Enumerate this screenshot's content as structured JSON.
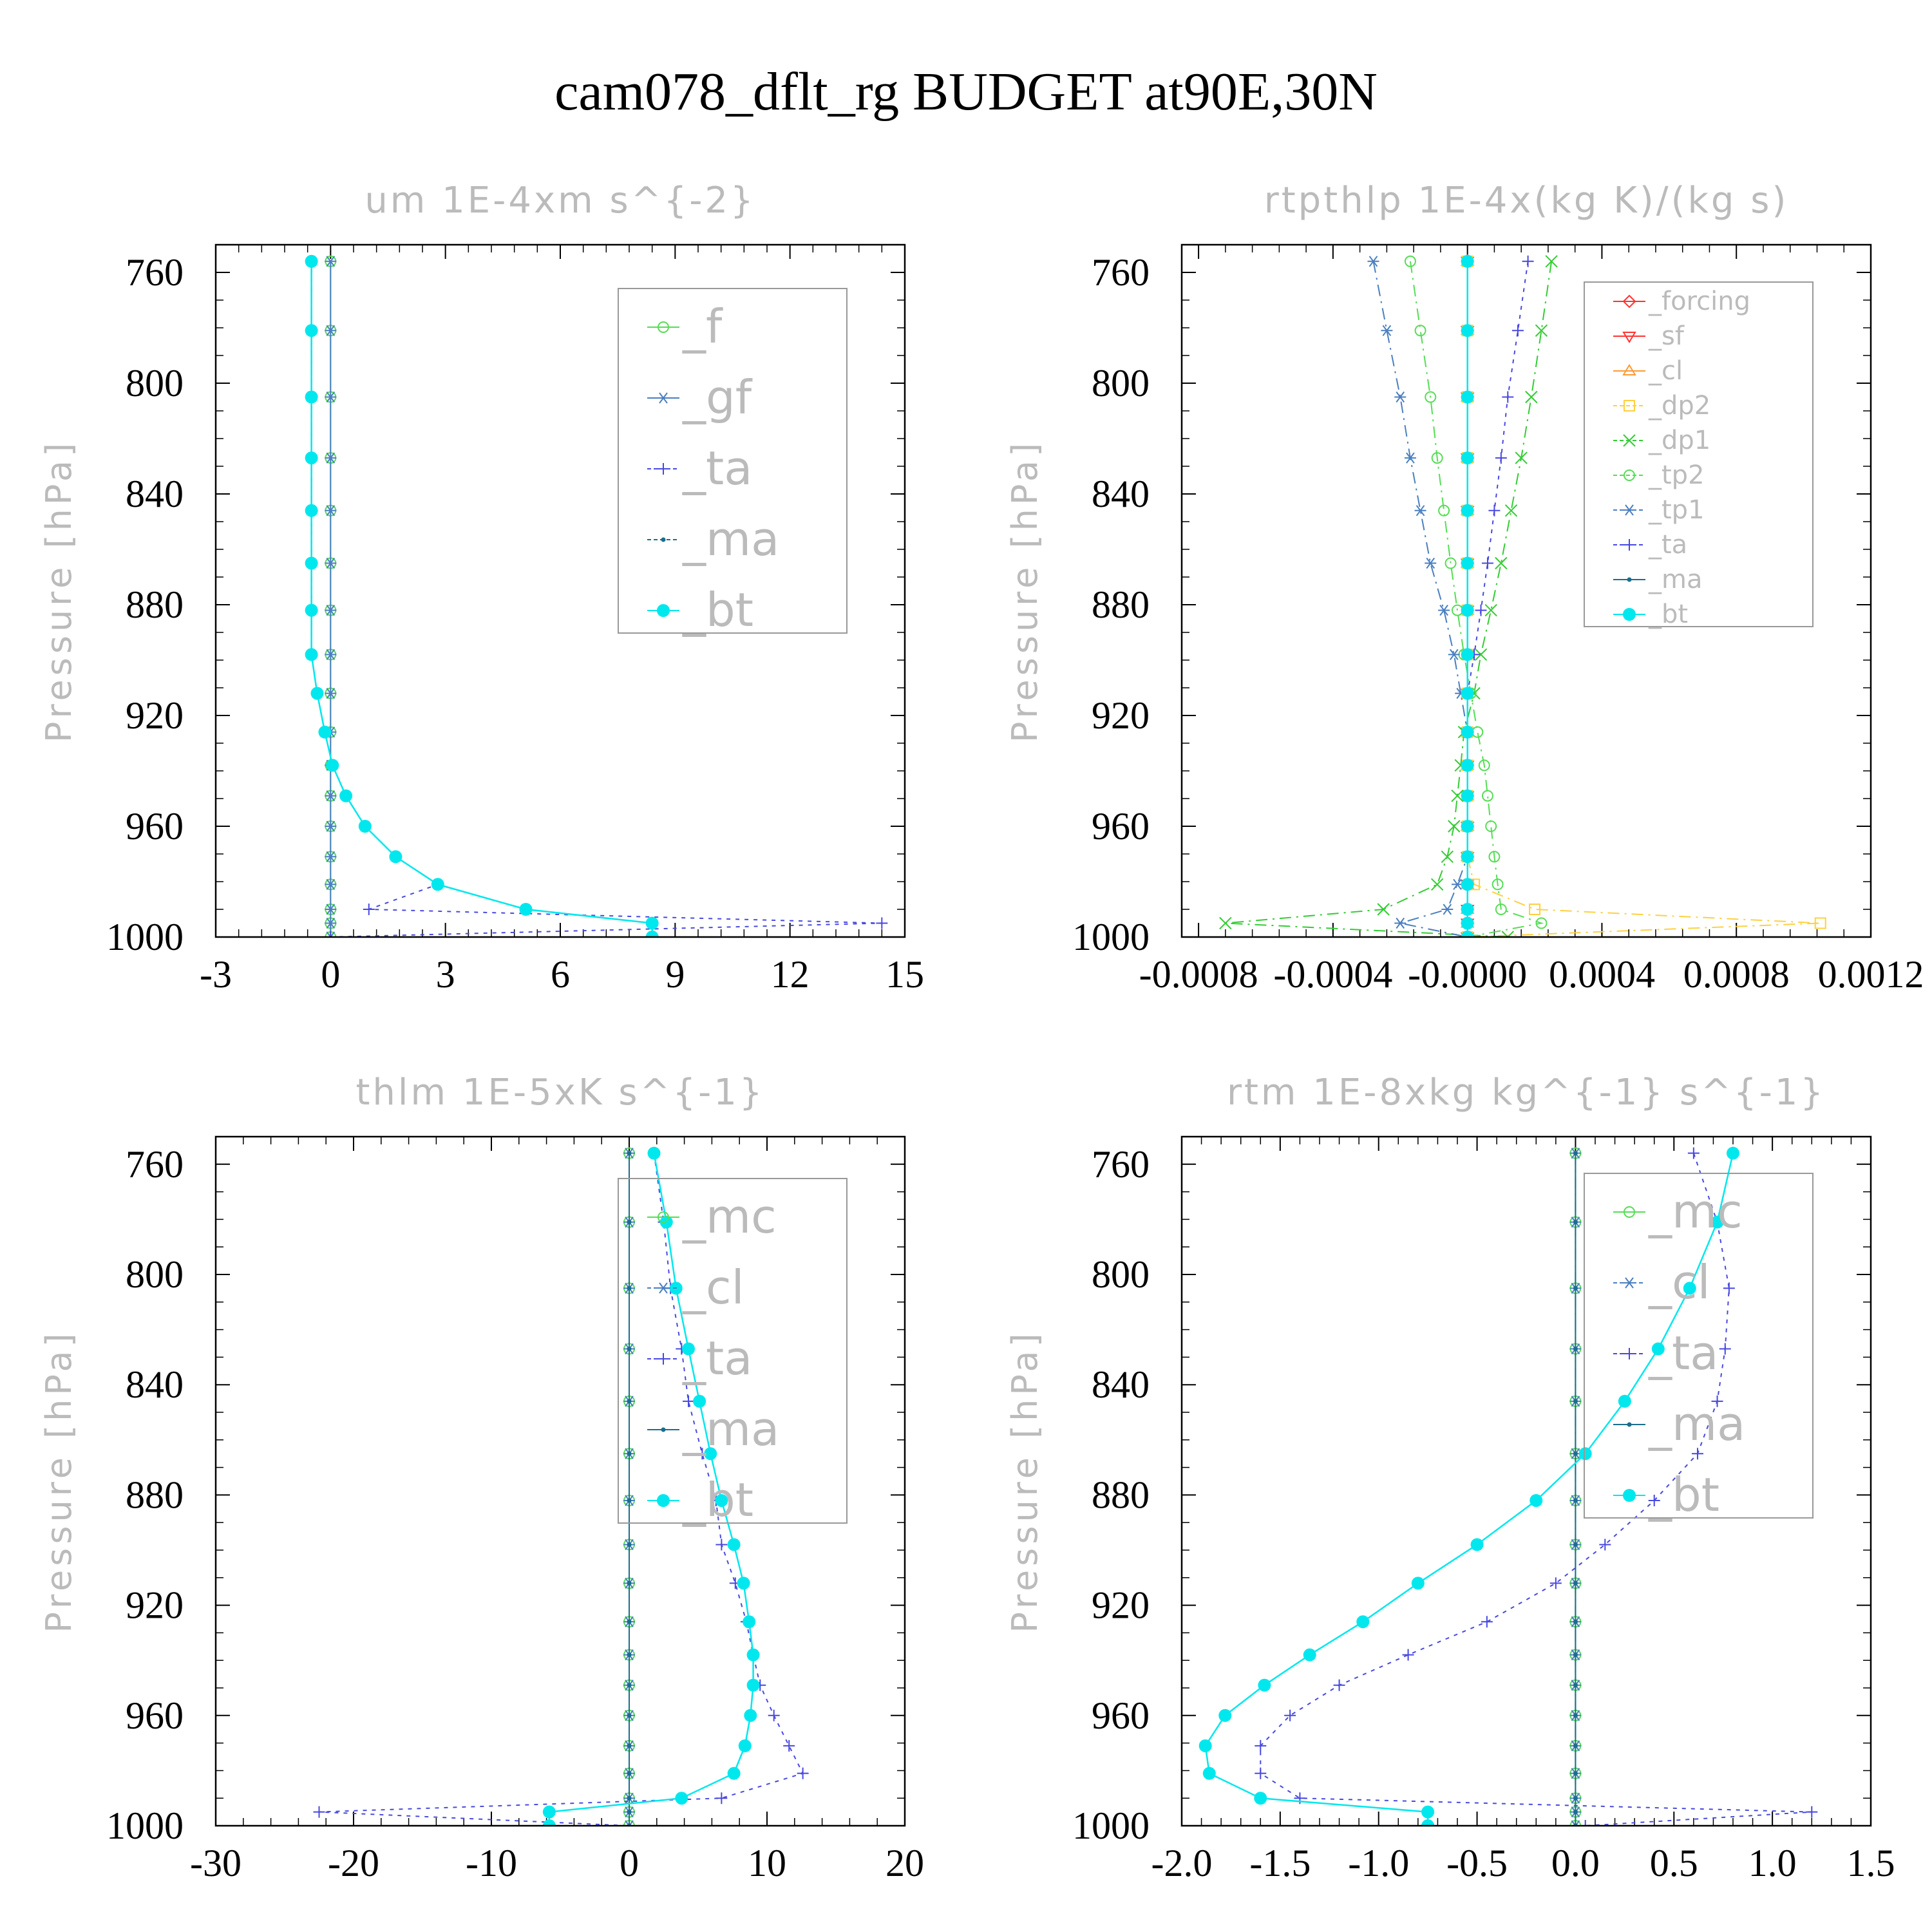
{
  "figure": {
    "title": "cam078_dflt_rg  BUDGET at90E,30N"
  },
  "colors": {
    "green": "#55dd55",
    "steel": "#4a7fc0",
    "blue": "#4848e0",
    "teal": "#1a6e8e",
    "cyan": "#00e8ee",
    "red": "#ff3333",
    "orange": "#ff9a33",
    "yellow": "#ffd040",
    "lgreen": "#33cc33",
    "frame": "#000000",
    "legendbox": "#999999"
  },
  "chart_data": [
    {
      "id": "um",
      "type": "line",
      "title": "um   1E-4xm s^{-2}",
      "ylabel": "Pressure [hPa]",
      "xlim": [
        -3,
        15
      ],
      "ylim": [
        750,
        1000
      ],
      "y_inverted": true,
      "xticks": [
        -3,
        0,
        3,
        6,
        9,
        12,
        15
      ],
      "xtick_labels": [
        "-3",
        "0",
        "3",
        "6",
        "9",
        "12",
        "15"
      ],
      "yticks": [
        760,
        800,
        840,
        880,
        920,
        960,
        1000
      ],
      "ytick_labels": [
        "760",
        "800",
        "840",
        "880",
        "920",
        "960",
        "1000"
      ],
      "legend_position": "top-right",
      "legend_font": 72,
      "pressure": [
        756,
        781,
        805,
        827,
        846,
        865,
        882,
        898,
        912,
        926,
        938,
        949,
        960,
        971,
        981,
        990,
        995,
        1000
      ],
      "series": [
        {
          "name": "_f",
          "color": "green",
          "marker": "circle-open",
          "dash": "",
          "values": [
            0,
            0,
            0,
            0,
            0,
            0,
            0,
            0,
            0,
            0,
            0,
            0,
            0,
            0,
            0,
            0,
            0,
            0
          ]
        },
        {
          "name": "_gf",
          "color": "steel",
          "marker": "asterisk",
          "dash": "",
          "values": [
            0,
            0,
            0,
            0,
            0,
            0,
            0,
            0,
            0,
            0,
            0,
            0,
            0,
            0,
            0,
            0,
            0,
            0
          ]
        },
        {
          "name": "_ta",
          "color": "blue",
          "marker": "plus",
          "dash": "6,8",
          "values": [
            -0.5,
            -0.5,
            -0.5,
            -0.5,
            -0.5,
            -0.5,
            -0.5,
            -0.5,
            -0.35,
            -0.15,
            0.05,
            0.4,
            0.9,
            1.7,
            2.8,
            1.0,
            14.4,
            0.0
          ]
        },
        {
          "name": "_ma",
          "color": "teal",
          "marker": "dot",
          "dash": "18,8,3,8",
          "values": [
            -0.5,
            -0.5,
            -0.5,
            -0.5,
            -0.5,
            -0.5,
            -0.5,
            -0.5,
            -0.35,
            -0.15,
            0.05,
            0.4,
            0.9,
            1.7,
            2.8,
            5.1,
            8.4,
            8.4
          ]
        },
        {
          "name": "_bt",
          "color": "cyan",
          "marker": "circle-filled",
          "dash": "",
          "values": [
            -0.5,
            -0.5,
            -0.5,
            -0.5,
            -0.5,
            -0.5,
            -0.5,
            -0.5,
            -0.35,
            -0.15,
            0.05,
            0.4,
            0.9,
            1.7,
            2.8,
            5.1,
            8.4,
            8.4
          ]
        }
      ]
    },
    {
      "id": "rtpthlp",
      "type": "line",
      "title": "rtpthlp   1E-4x(kg K)/(kg s)",
      "ylabel": "Pressure [hPa]",
      "xlim": [
        -0.00085,
        0.0012
      ],
      "ylim": [
        750,
        1000
      ],
      "y_inverted": true,
      "xticks": [
        -0.0008,
        -0.0004,
        0.0,
        0.0004,
        0.0008,
        0.0012
      ],
      "xtick_labels": [
        "-0.0008",
        "-0.0004",
        "-0.0000",
        "0.0004",
        "0.0008",
        "0.0012"
      ],
      "yticks": [
        760,
        800,
        840,
        880,
        920,
        960,
        1000
      ],
      "ytick_labels": [
        "760",
        "800",
        "840",
        "880",
        "920",
        "960",
        "1000"
      ],
      "legend_position": "top-right",
      "legend_font": 40,
      "pressure": [
        756,
        781,
        805,
        827,
        846,
        865,
        882,
        898,
        912,
        926,
        938,
        949,
        960,
        971,
        981,
        990,
        995,
        1000
      ],
      "series": [
        {
          "name": "_forcing",
          "color": "red",
          "marker": "diamond-open",
          "dash": "",
          "values": [
            0,
            0,
            0,
            0,
            0,
            0,
            0,
            0,
            0,
            0,
            0,
            0,
            0,
            0,
            0,
            0,
            0,
            0
          ]
        },
        {
          "name": "_sf",
          "color": "red",
          "marker": "tri-down",
          "dash": "",
          "values": [
            0,
            0,
            0,
            0,
            0,
            0,
            0,
            0,
            0,
            0,
            0,
            0,
            0,
            0,
            0,
            0,
            0,
            0
          ]
        },
        {
          "name": "_cl",
          "color": "orange",
          "marker": "tri-up",
          "dash": "",
          "values": [
            0,
            0,
            0,
            0,
            0,
            0,
            0,
            0,
            0,
            0,
            0,
            0,
            0,
            0,
            0,
            0,
            0,
            0
          ]
        },
        {
          "name": "_dp2",
          "color": "yellow",
          "marker": "square-open",
          "dash": "18,8,3,8",
          "values": [
            0,
            0,
            0,
            0,
            0,
            0,
            0,
            0,
            0,
            0,
            0,
            0,
            0,
            0,
            2e-05,
            0.0002,
            0.00105,
            0
          ]
        },
        {
          "name": "_dp1",
          "color": "lgreen",
          "marker": "cross",
          "dash": "18,8,3,8",
          "values": [
            0.00025,
            0.00022,
            0.00019,
            0.00016,
            0.00013,
            0.0001,
            7e-05,
            4e-05,
            2e-05,
            -1e-05,
            -2e-05,
            -3e-05,
            -4e-05,
            -6e-05,
            -9e-05,
            -0.00025,
            -0.00072,
            0.00012
          ]
        },
        {
          "name": "_tp2",
          "color": "green",
          "marker": "circle-open",
          "dash": "18,8,3,8",
          "values": [
            -0.00017,
            -0.00014,
            -0.00011,
            -9e-05,
            -7e-05,
            -5e-05,
            -3e-05,
            -1e-05,
            1e-05,
            3e-05,
            5e-05,
            6e-05,
            7e-05,
            8e-05,
            9e-05,
            0.0001,
            0.00022,
            0
          ]
        },
        {
          "name": "_tp1",
          "color": "steel",
          "marker": "asterisk",
          "dash": "18,8,3,8",
          "values": [
            -0.00028,
            -0.00024,
            -0.0002,
            -0.00017,
            -0.00014,
            -0.00011,
            -7e-05,
            -4e-05,
            -2e-05,
            0,
            0,
            0,
            0,
            0,
            -3e-05,
            -6e-05,
            -0.0002,
            0
          ]
        },
        {
          "name": "_ta",
          "color": "blue",
          "marker": "plus",
          "dash": "6,8",
          "values": [
            0.00018,
            0.00015,
            0.00012,
            0.0001,
            8e-05,
            6e-05,
            4e-05,
            2e-05,
            0,
            0,
            0,
            0,
            0,
            0,
            0,
            0,
            0,
            0
          ]
        },
        {
          "name": "_ma",
          "color": "teal",
          "marker": "dot",
          "dash": "",
          "values": [
            0,
            0,
            0,
            0,
            0,
            0,
            0,
            0,
            0,
            0,
            0,
            0,
            0,
            0,
            0,
            0,
            0,
            0
          ]
        },
        {
          "name": "_bt",
          "color": "cyan",
          "marker": "circle-filled",
          "dash": "",
          "values": [
            0,
            0,
            0,
            0,
            0,
            0,
            0,
            0,
            0,
            0,
            0,
            0,
            0,
            0,
            0,
            0,
            0,
            0
          ]
        }
      ]
    },
    {
      "id": "thlm",
      "type": "line",
      "title": "thlm   1E-5xK s^{-1}",
      "ylabel": "Pressure [hPa]",
      "xlim": [
        -30,
        20
      ],
      "ylim": [
        750,
        1000
      ],
      "y_inverted": true,
      "xticks": [
        -30,
        -20,
        -10,
        0,
        10,
        20
      ],
      "xtick_labels": [
        "-30",
        "-20",
        "-10",
        "0",
        "10",
        "20"
      ],
      "yticks": [
        760,
        800,
        840,
        880,
        920,
        960,
        1000
      ],
      "ytick_labels": [
        "760",
        "800",
        "840",
        "880",
        "920",
        "960",
        "1000"
      ],
      "legend_position": "top-right",
      "legend_font": 72,
      "pressure": [
        756,
        781,
        805,
        827,
        846,
        865,
        882,
        898,
        912,
        926,
        938,
        949,
        960,
        971,
        981,
        990,
        995,
        1000
      ],
      "series": [
        {
          "name": "_mc",
          "color": "green",
          "marker": "circle-open",
          "dash": "",
          "values": [
            0,
            0,
            0,
            0,
            0,
            0,
            0,
            0,
            0,
            0,
            0,
            0,
            0,
            0,
            0,
            0,
            0,
            0
          ]
        },
        {
          "name": "_cl",
          "color": "steel",
          "marker": "asterisk",
          "dash": "18,8,3,8",
          "values": [
            0,
            0,
            0,
            0,
            0,
            0,
            0,
            0,
            0,
            0,
            0,
            0,
            0,
            0,
            0,
            0,
            0,
            0
          ]
        },
        {
          "name": "_ta",
          "color": "blue",
          "marker": "plus",
          "dash": "6,8",
          "values": [
            1.8,
            2.5,
            3.0,
            3.8,
            4.3,
            5.3,
            6.3,
            6.7,
            7.7,
            8.5,
            9.0,
            9.5,
            10.5,
            11.6,
            12.6,
            6.7,
            -22.5,
            0
          ]
        },
        {
          "name": "_ma",
          "color": "teal",
          "marker": "dot",
          "dash": "",
          "values": [
            0,
            0,
            0,
            0,
            0,
            0,
            0,
            0,
            0,
            0,
            0,
            0,
            0,
            0,
            0,
            0,
            0,
            0
          ]
        },
        {
          "name": "_bt",
          "color": "cyan",
          "marker": "circle-filled",
          "dash": "",
          "values": [
            1.8,
            2.7,
            3.4,
            4.3,
            5.1,
            5.9,
            6.7,
            7.6,
            8.3,
            8.7,
            9.0,
            9.0,
            8.8,
            8.4,
            7.6,
            3.8,
            -5.8,
            -5.8
          ]
        }
      ]
    },
    {
      "id": "rtm",
      "type": "line",
      "title": "rtm   1E-8xkg kg^{-1} s^{-1}",
      "ylabel": "Pressure [hPa]",
      "xlim": [
        -2.0,
        1.5
      ],
      "ylim": [
        750,
        1000
      ],
      "y_inverted": true,
      "xticks": [
        -2.0,
        -1.5,
        -1.0,
        -0.5,
        0.0,
        0.5,
        1.0,
        1.5
      ],
      "xtick_labels": [
        "-2.0",
        "-1.5",
        "-1.0",
        "-0.5",
        "0.0",
        "0.5",
        "1.0",
        "1.5"
      ],
      "yticks": [
        760,
        800,
        840,
        880,
        920,
        960,
        1000
      ],
      "ytick_labels": [
        "760",
        "800",
        "840",
        "880",
        "920",
        "960",
        "1000"
      ],
      "legend_position": "top-right",
      "legend_font": 72,
      "pressure": [
        756,
        781,
        805,
        827,
        846,
        865,
        882,
        898,
        912,
        926,
        938,
        949,
        960,
        971,
        981,
        990,
        995,
        1000
      ],
      "series": [
        {
          "name": "_mc",
          "color": "green",
          "marker": "circle-open",
          "dash": "",
          "values": [
            0,
            0,
            0,
            0,
            0,
            0,
            0,
            0,
            0,
            0,
            0,
            0,
            0,
            0,
            0,
            0,
            0,
            0
          ]
        },
        {
          "name": "_cl",
          "color": "steel",
          "marker": "asterisk",
          "dash": "18,8,3,8",
          "values": [
            0,
            0,
            0,
            0,
            0,
            0,
            0,
            0,
            0,
            0,
            0,
            0,
            0,
            0,
            0,
            0,
            0,
            0
          ]
        },
        {
          "name": "_ta",
          "color": "blue",
          "marker": "plus",
          "dash": "6,8",
          "values": [
            0.6,
            0.72,
            0.78,
            0.76,
            0.72,
            0.62,
            0.4,
            0.15,
            -0.1,
            -0.45,
            -0.85,
            -1.2,
            -1.45,
            -1.6,
            -1.6,
            -1.4,
            1.2,
            0.05
          ]
        },
        {
          "name": "_ma",
          "color": "teal",
          "marker": "dot",
          "dash": "",
          "values": [
            0,
            0,
            0,
            0,
            0,
            0,
            0,
            0,
            0,
            0,
            0,
            0,
            0,
            0,
            0,
            0,
            0,
            0
          ]
        },
        {
          "name": "_bt",
          "color": "cyan",
          "marker": "circle-filled",
          "dash": "",
          "values": [
            0.8,
            0.72,
            0.58,
            0.42,
            0.25,
            0.05,
            -0.2,
            -0.5,
            -0.8,
            -1.08,
            -1.35,
            -1.58,
            -1.78,
            -1.88,
            -1.86,
            -1.6,
            -0.75,
            -0.75
          ]
        }
      ]
    }
  ]
}
